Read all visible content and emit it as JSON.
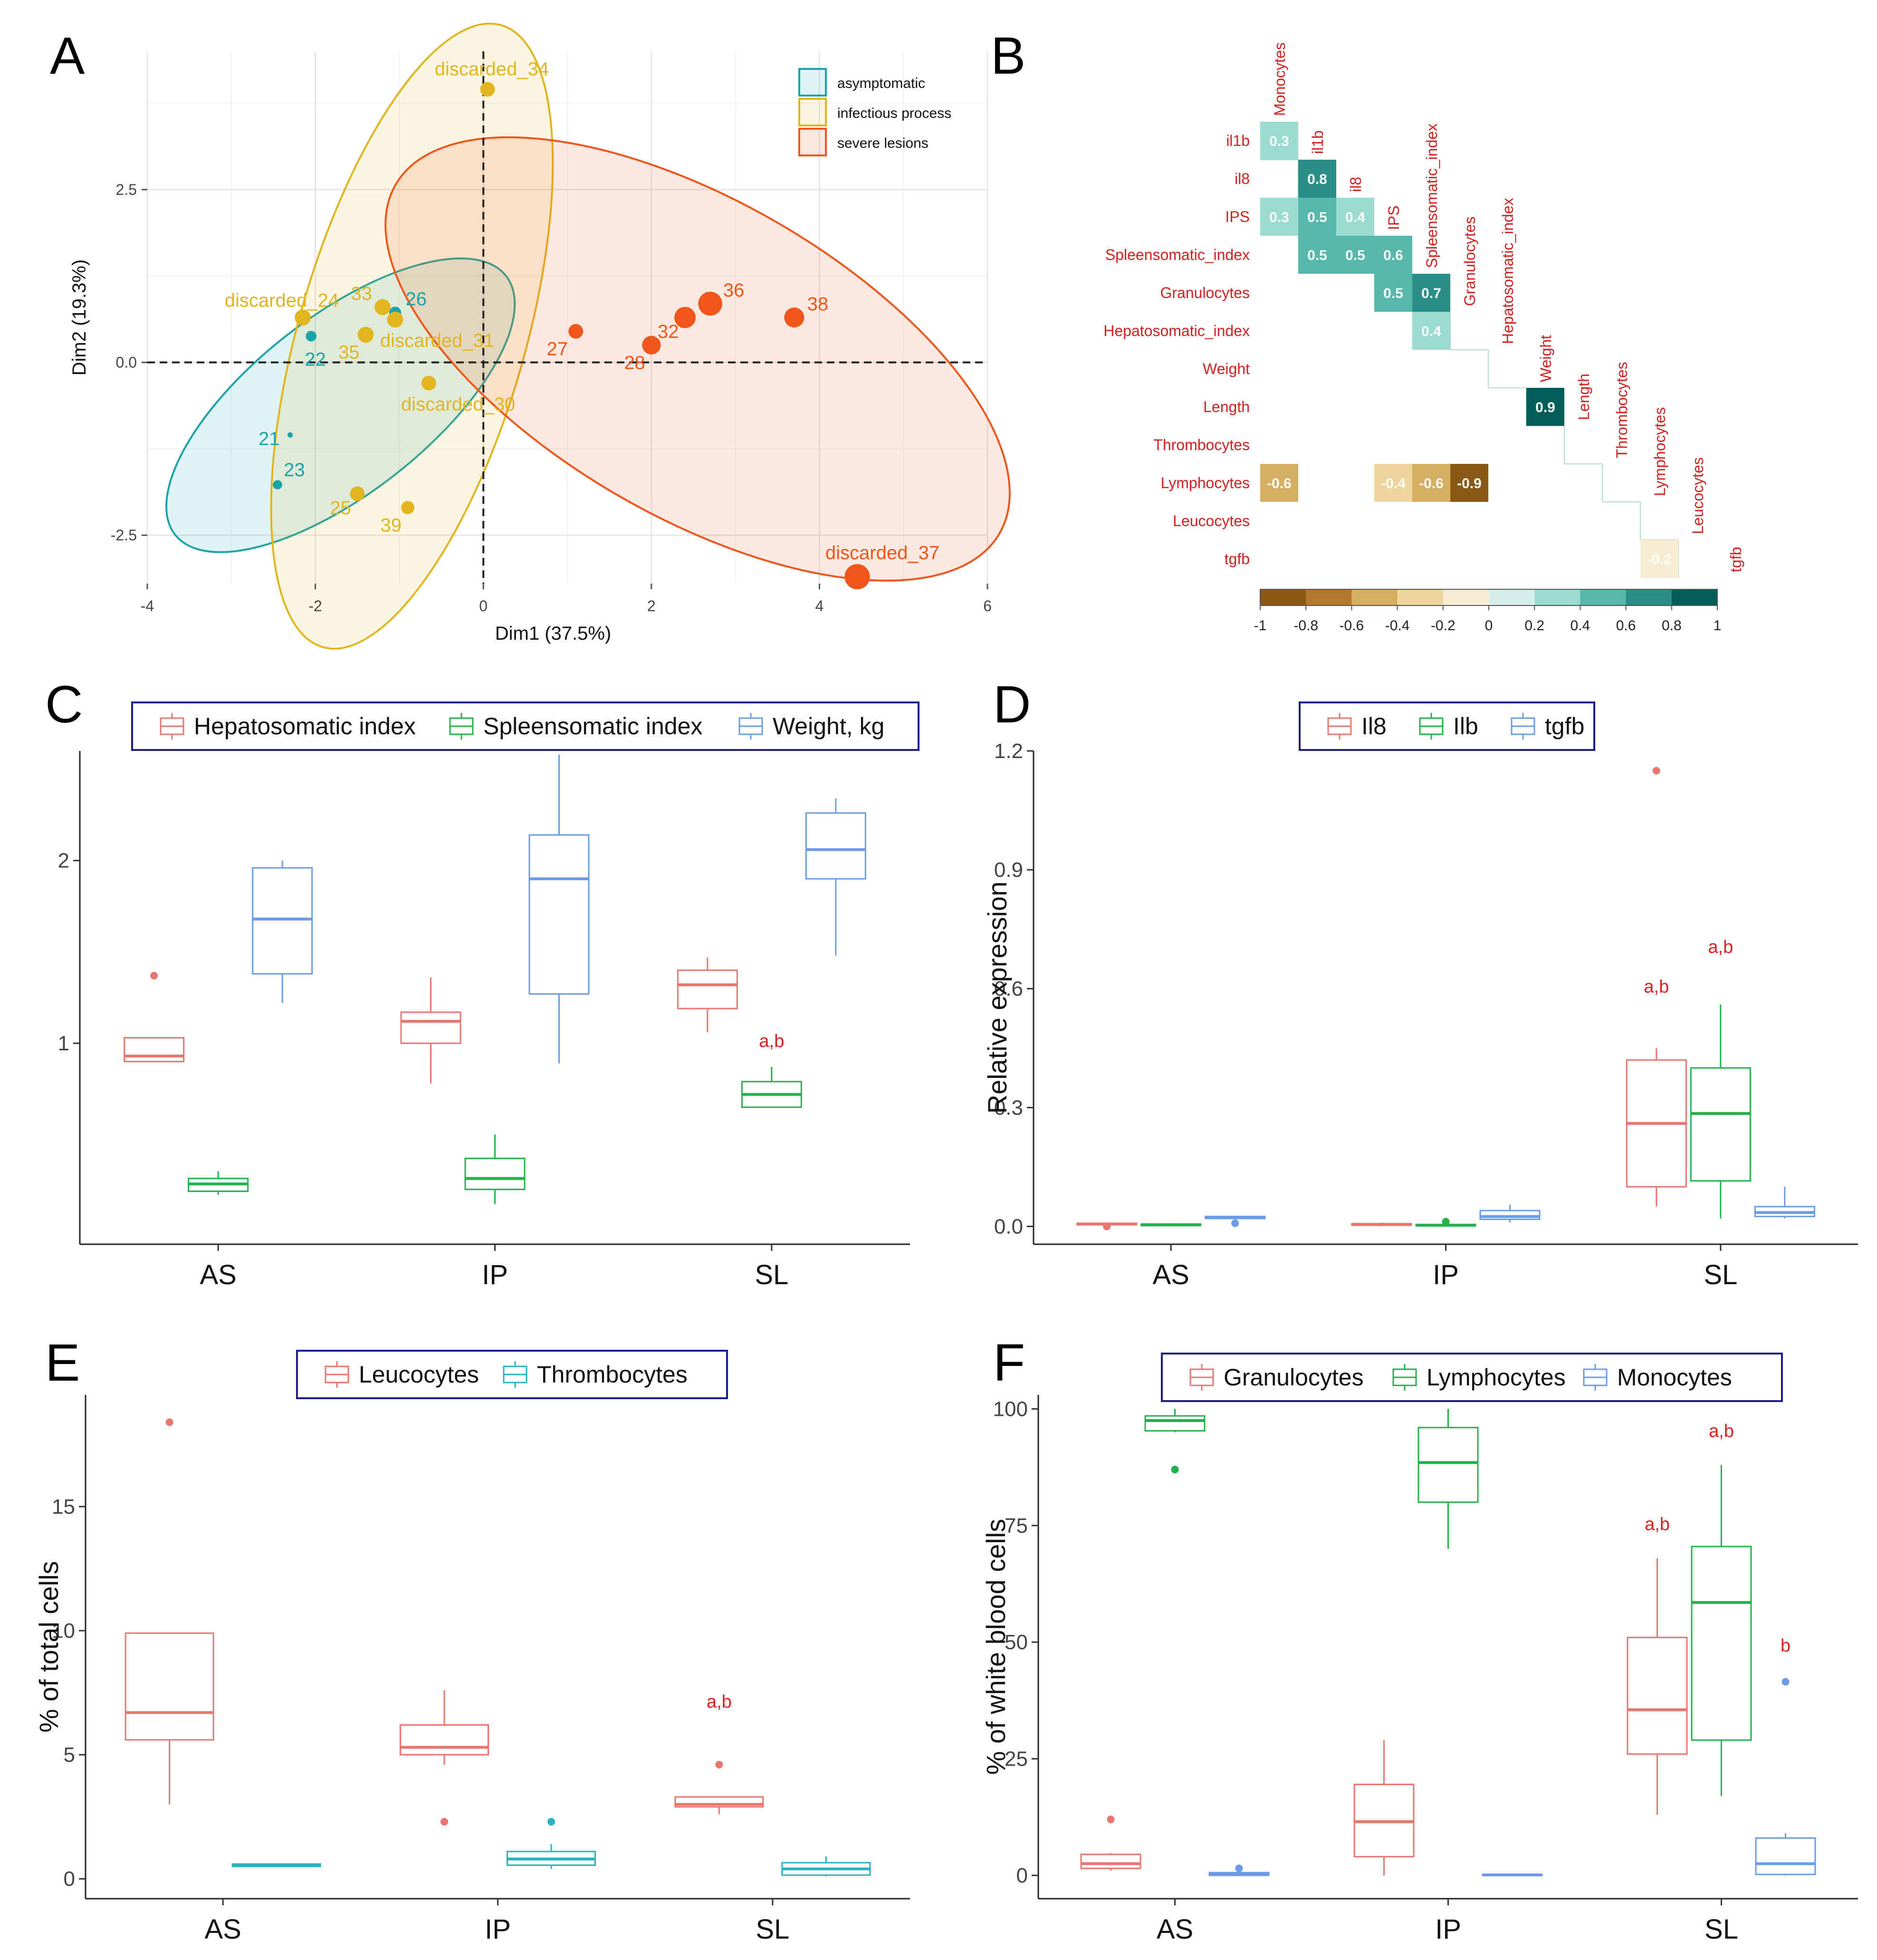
{
  "panel_labels": {
    "a": "A",
    "b": "B",
    "c": "C",
    "d": "D",
    "e": "E",
    "f": "F"
  },
  "colors": {
    "asymptomatic": "#1aa3a8",
    "infectious": "#e0b51e",
    "severe": "#f0561a",
    "red": "#e8766f",
    "green": "#22b24c",
    "blue": "#6b9be8",
    "teal": "#26b5c0",
    "sig": "#e02020",
    "corr_label": "#d42020",
    "legend_border": "#1c1c8c"
  },
  "chart_data": [
    {
      "id": "A",
      "type": "scatter",
      "title": "",
      "xlabel": "Dim1 (37.5%)",
      "ylabel": "Dim2 (19.3%)",
      "xlim": [
        -4,
        6
      ],
      "ylim": [
        -3.2,
        4.5
      ],
      "xticks": [
        -4,
        -2,
        0,
        2,
        4,
        6
      ],
      "xtick_labels": [
        "-4",
        "-2",
        "0",
        "2",
        "4",
        "6"
      ],
      "yticks": [
        -2.5,
        0,
        2.5
      ],
      "ytick_labels": [
        "-2.5",
        "0.0",
        "2.5"
      ],
      "legend": [
        {
          "key": "asymptomatic",
          "label": "asymptomatic"
        },
        {
          "key": "infectious",
          "label": "infectious process"
        },
        {
          "key": "severe",
          "label": "severe lesions"
        }
      ],
      "ellipses": [
        {
          "group": "asymptomatic",
          "cx": -1.7,
          "cy": -0.62,
          "rx": 2.5,
          "ry": 1.05,
          "angle": 38
        },
        {
          "group": "infectious",
          "cx": -0.85,
          "cy": 0.38,
          "rx": 3.85,
          "ry": 1.35,
          "angle": 74
        },
        {
          "group": "severe",
          "cx": 2.55,
          "cy": 0.05,
          "rx": 4.15,
          "ry": 1.88,
          "angle": -30
        }
      ],
      "points": [
        {
          "label": "21",
          "x": -2.3,
          "y": -1.05,
          "group": "asymptomatic",
          "size": 4,
          "lx": -2.55,
          "ly": -1.1
        },
        {
          "label": "22",
          "x": -2.05,
          "y": 0.38,
          "group": "asymptomatic",
          "size": 8,
          "lx": -2.0,
          "ly": 0.05
        },
        {
          "label": "23",
          "x": -2.45,
          "y": -1.77,
          "group": "asymptomatic",
          "size": 7,
          "lx": -2.25,
          "ly": -1.55
        },
        {
          "label": "26",
          "x": -1.05,
          "y": 0.72,
          "group": "asymptomatic",
          "size": 9,
          "lx": -0.8,
          "ly": 0.92
        },
        {
          "label": "discarded_24",
          "x": -2.15,
          "y": 0.65,
          "group": "infectious",
          "size": 12,
          "lx": -2.4,
          "ly": 0.9
        },
        {
          "label": "33",
          "x": -1.2,
          "y": 0.8,
          "group": "infectious",
          "size": 12,
          "lx": -1.45,
          "ly": 1.0
        },
        {
          "label": "35",
          "x": -1.4,
          "y": 0.4,
          "group": "infectious",
          "size": 12,
          "lx": -1.6,
          "ly": 0.15
        },
        {
          "label": "discarded_31",
          "x": -1.05,
          "y": 0.62,
          "group": "infectious",
          "size": 12,
          "lx": -0.55,
          "ly": 0.32
        },
        {
          "label": "discarded_30",
          "x": -0.65,
          "y": -0.3,
          "group": "infectious",
          "size": 11,
          "lx": -0.3,
          "ly": -0.6
        },
        {
          "label": "discarded_34",
          "x": 0.05,
          "y": 3.95,
          "group": "infectious",
          "size": 11,
          "lx": 0.1,
          "ly": 4.25
        },
        {
          "label": "25",
          "x": -1.5,
          "y": -1.9,
          "group": "infectious",
          "size": 11,
          "lx": -1.7,
          "ly": -2.1
        },
        {
          "label": "39",
          "x": -0.9,
          "y": -2.1,
          "group": "infectious",
          "size": 10,
          "lx": -1.1,
          "ly": -2.35
        },
        {
          "label": "27",
          "x": 1.1,
          "y": 0.45,
          "group": "severe",
          "size": 11,
          "lx": 0.88,
          "ly": 0.2
        },
        {
          "label": "28",
          "x": 2.0,
          "y": 0.25,
          "group": "severe",
          "size": 14,
          "lx": 1.8,
          "ly": 0.0
        },
        {
          "label": "32",
          "x": 2.4,
          "y": 0.65,
          "group": "severe",
          "size": 16,
          "lx": 2.2,
          "ly": 0.45
        },
        {
          "label": "36",
          "x": 2.7,
          "y": 0.85,
          "group": "severe",
          "size": 18,
          "lx": 2.98,
          "ly": 1.05
        },
        {
          "label": "38",
          "x": 3.7,
          "y": 0.65,
          "group": "severe",
          "size": 15,
          "lx": 3.98,
          "ly": 0.85
        },
        {
          "label": "discarded_37",
          "x": 4.45,
          "y": -3.1,
          "group": "severe",
          "size": 19,
          "lx": 4.75,
          "ly": -2.75
        }
      ]
    },
    {
      "id": "B",
      "type": "heatmap",
      "title": "",
      "variables": [
        "Monocytes",
        "il1b",
        "il8",
        "IPS",
        "Spleensomatic_index",
        "Granulocytes",
        "Hepatosomatic_index",
        "Weight",
        "Length",
        "Thrombocytes",
        "Lymphocytes",
        "Leucocytes",
        "tgfb"
      ],
      "rows": [
        "il1b",
        "il8",
        "IPS",
        "Spleensomatic_index",
        "Granulocytes",
        "Hepatosomatic_index",
        "Weight",
        "Length",
        "Thrombocytes",
        "Lymphocytes",
        "Leucocytes",
        "tgfb"
      ],
      "cells": [
        {
          "row": 0,
          "col": 0,
          "value": 0.3,
          "label": "0.3"
        },
        {
          "row": 1,
          "col": 1,
          "value": 0.8,
          "label": "0.8"
        },
        {
          "row": 2,
          "col": 0,
          "value": 0.3,
          "label": "0.3"
        },
        {
          "row": 2,
          "col": 1,
          "value": 0.5,
          "label": "0.5"
        },
        {
          "row": 2,
          "col": 2,
          "value": 0.4,
          "label": "0.4"
        },
        {
          "row": 3,
          "col": 1,
          "value": 0.5,
          "label": "0.5"
        },
        {
          "row": 3,
          "col": 2,
          "value": 0.5,
          "label": "0.5"
        },
        {
          "row": 3,
          "col": 3,
          "value": 0.6,
          "label": "0.6"
        },
        {
          "row": 4,
          "col": 3,
          "value": 0.5,
          "label": "0.5"
        },
        {
          "row": 4,
          "col": 4,
          "value": 0.7,
          "label": "0.7"
        },
        {
          "row": 5,
          "col": 4,
          "value": 0.4,
          "label": "0.4"
        },
        {
          "row": 7,
          "col": 7,
          "value": 0.9,
          "label": "0.9"
        },
        {
          "row": 9,
          "col": 0,
          "value": -0.6,
          "label": "-0.6"
        },
        {
          "row": 9,
          "col": 3,
          "value": -0.4,
          "label": "-0.4"
        },
        {
          "row": 9,
          "col": 4,
          "value": -0.6,
          "label": "-0.6"
        },
        {
          "row": 9,
          "col": 5,
          "value": -0.9,
          "label": "-0.9"
        },
        {
          "row": 11,
          "col": 10,
          "value": -0.2,
          "label": "-0.2"
        }
      ],
      "colorbar": {
        "ticks": [
          -1,
          -0.8,
          -0.6,
          -0.4,
          -0.2,
          0,
          0.2,
          0.4,
          0.6,
          0.8,
          1
        ],
        "tick_labels": [
          "-1",
          "-0.8",
          "-0.6",
          "-0.4",
          "-0.2",
          "0",
          "0.2",
          "0.4",
          "0.6",
          "0.8",
          "1"
        ],
        "colors": [
          "#8a5a14",
          "#b5792e",
          "#d6ae62",
          "#edd59b",
          "#f5ecd2",
          "#f4f4f4",
          "#d5efeb",
          "#99dbd1",
          "#55b8a9",
          "#2a9086",
          "#035f57"
        ]
      }
    },
    {
      "id": "C",
      "type": "box",
      "ylabel": "",
      "xlabel": "",
      "ylim": [
        -0.1,
        2.6
      ],
      "yticks": [
        1,
        2
      ],
      "ytick_labels": [
        "1",
        "2"
      ],
      "categories": [
        "AS",
        "IP",
        "SL"
      ],
      "series": [
        {
          "name": "Hepatosomatic index",
          "color_key": "red",
          "boxes": [
            {
              "low": 0.9,
              "q1": 0.9,
              "med": 0.93,
              "q3": 1.03,
              "high": 1.03,
              "outliers": [
                1.37
              ]
            },
            {
              "low": 0.78,
              "q1": 1.0,
              "med": 1.12,
              "q3": 1.17,
              "high": 1.36,
              "outliers": []
            },
            {
              "low": 1.06,
              "q1": 1.19,
              "med": 1.32,
              "q3": 1.4,
              "high": 1.47,
              "outliers": []
            }
          ]
        },
        {
          "name": "Spleensomatic index",
          "color_key": "green",
          "boxes": [
            {
              "low": 0.17,
              "q1": 0.19,
              "med": 0.23,
              "q3": 0.26,
              "high": 0.3,
              "outliers": []
            },
            {
              "low": 0.12,
              "q1": 0.2,
              "med": 0.26,
              "q3": 0.37,
              "high": 0.5,
              "outliers": []
            },
            {
              "low": 0.65,
              "q1": 0.65,
              "med": 0.72,
              "q3": 0.79,
              "high": 0.87,
              "outliers": []
            }
          ]
        },
        {
          "name": "Weight, kg",
          "color_key": "blue",
          "boxes": [
            {
              "low": 1.22,
              "q1": 1.38,
              "med": 1.68,
              "q3": 1.96,
              "high": 2.0,
              "outliers": []
            },
            {
              "low": 0.89,
              "q1": 1.27,
              "med": 1.9,
              "q3": 2.14,
              "high": 2.58,
              "outliers": []
            },
            {
              "low": 1.48,
              "q1": 1.9,
              "med": 2.06,
              "q3": 2.26,
              "high": 2.34,
              "outliers": []
            }
          ]
        }
      ],
      "annotations": [
        {
          "text": "a,b",
          "category": 2,
          "series": 1,
          "y": 0.98
        }
      ]
    },
    {
      "id": "D",
      "type": "box",
      "ylabel": "Relative expression",
      "xlabel": "",
      "ylim": [
        -0.045,
        1.2
      ],
      "yticks": [
        0,
        0.3,
        0.6,
        0.9,
        1.2
      ],
      "ytick_labels": [
        "0.0",
        "0.3",
        "0.6",
        "0.9",
        "1.2"
      ],
      "categories": [
        "AS",
        "IP",
        "SL"
      ],
      "series": [
        {
          "name": "Il8",
          "color_key": "red",
          "boxes": [
            {
              "low": 0.0,
              "q1": 0.004,
              "med": 0.006,
              "q3": 0.008,
              "high": 0.01,
              "outliers": [
                0.0
              ]
            },
            {
              "low": 0.0,
              "q1": 0.003,
              "med": 0.005,
              "q3": 0.007,
              "high": 0.009,
              "outliers": []
            },
            {
              "low": 0.05,
              "q1": 0.1,
              "med": 0.26,
              "q3": 0.42,
              "high": 0.45,
              "outliers": [
                1.15
              ]
            }
          ]
        },
        {
          "name": "Ilb",
          "color_key": "green",
          "boxes": [
            {
              "low": 0.0,
              "q1": 0.002,
              "med": 0.004,
              "q3": 0.006,
              "high": 0.008,
              "outliers": []
            },
            {
              "low": 0.0,
              "q1": 0.002,
              "med": 0.003,
              "q3": 0.005,
              "high": 0.006,
              "outliers": [
                0.012
              ]
            },
            {
              "low": 0.02,
              "q1": 0.115,
              "med": 0.285,
              "q3": 0.4,
              "high": 0.56,
              "outliers": []
            }
          ]
        },
        {
          "name": "tgfb",
          "color_key": "blue",
          "boxes": [
            {
              "low": 0.018,
              "q1": 0.02,
              "med": 0.023,
              "q3": 0.025,
              "high": 0.027,
              "outliers": [
                0.008
              ]
            },
            {
              "low": 0.01,
              "q1": 0.018,
              "med": 0.025,
              "q3": 0.04,
              "high": 0.055,
              "outliers": []
            },
            {
              "low": 0.02,
              "q1": 0.025,
              "med": 0.035,
              "q3": 0.05,
              "high": 0.1,
              "outliers": []
            }
          ]
        }
      ],
      "annotations": [
        {
          "text": "a,b",
          "category": 2,
          "series": 0,
          "y": 0.59
        },
        {
          "text": "a,b",
          "category": 2,
          "series": 1,
          "y": 0.69
        }
      ]
    },
    {
      "id": "E",
      "type": "box",
      "ylabel": "% of total cells",
      "xlabel": "",
      "ylim": [
        -0.8,
        19.5
      ],
      "yticks": [
        0,
        5,
        10,
        15
      ],
      "ytick_labels": [
        "0",
        "5",
        "10",
        "15"
      ],
      "categories": [
        "AS",
        "IP",
        "SL"
      ],
      "series": [
        {
          "name": "Leucocytes",
          "color_key": "red",
          "boxes": [
            {
              "low": 3.0,
              "q1": 5.6,
              "med": 6.7,
              "q3": 9.9,
              "high": 9.9,
              "outliers": [
                18.4
              ]
            },
            {
              "low": 4.6,
              "q1": 5.0,
              "med": 5.3,
              "q3": 6.2,
              "high": 7.6,
              "outliers": [
                2.3
              ]
            },
            {
              "low": 2.6,
              "q1": 2.9,
              "med": 3.0,
              "q3": 3.3,
              "high": 3.3,
              "outliers": [
                4.6
              ]
            }
          ]
        },
        {
          "name": "Thrombocytes",
          "color_key": "teal",
          "boxes": [
            {
              "low": 0.5,
              "q1": 0.5,
              "med": 0.55,
              "q3": 0.6,
              "high": 0.6,
              "outliers": []
            },
            {
              "low": 0.4,
              "q1": 0.55,
              "med": 0.8,
              "q3": 1.1,
              "high": 1.4,
              "outliers": [
                2.3
              ]
            },
            {
              "low": 0.1,
              "q1": 0.15,
              "med": 0.4,
              "q3": 0.65,
              "high": 0.9,
              "outliers": []
            }
          ]
        }
      ],
      "annotations": [
        {
          "text": "a,b",
          "category": 2,
          "series": 0,
          "y": 6.9
        }
      ]
    },
    {
      "id": "F",
      "type": "box",
      "ylabel": "% of white blood cells",
      "xlabel": "",
      "ylim": [
        -5,
        103
      ],
      "yticks": [
        0,
        25,
        50,
        75,
        100
      ],
      "ytick_labels": [
        "0",
        "25",
        "50",
        "75",
        "100"
      ],
      "categories": [
        "AS",
        "IP",
        "SL"
      ],
      "series": [
        {
          "name": "Granulocytes",
          "color_key": "red",
          "boxes": [
            {
              "low": 1.0,
              "q1": 1.5,
              "med": 2.5,
              "q3": 4.5,
              "high": 4.8,
              "outliers": [
                12
              ]
            },
            {
              "low": 0,
              "q1": 4,
              "med": 11.5,
              "q3": 19.5,
              "high": 29,
              "outliers": []
            },
            {
              "low": 13,
              "q1": 26,
              "med": 35.5,
              "q3": 51,
              "high": 68,
              "outliers": []
            }
          ]
        },
        {
          "name": "Lymphocytes",
          "color_key": "green",
          "boxes": [
            {
              "low": 95,
              "q1": 95.3,
              "med": 97.5,
              "q3": 98.5,
              "high": 100,
              "outliers": [
                87
              ]
            },
            {
              "low": 70,
              "q1": 80,
              "med": 88.5,
              "q3": 96,
              "high": 100,
              "outliers": []
            },
            {
              "low": 17,
              "q1": 29,
              "med": 58.5,
              "q3": 70.5,
              "high": 88,
              "outliers": []
            }
          ]
        },
        {
          "name": "Monocytes",
          "color_key": "blue",
          "boxes": [
            {
              "low": 0,
              "q1": 0,
              "med": 0.3,
              "q3": 0.6,
              "high": 0.6,
              "outliers": [
                1.5
              ]
            },
            {
              "low": 0,
              "q1": 0,
              "med": 0.1,
              "q3": 0.2,
              "high": 0.2,
              "outliers": []
            },
            {
              "low": 0,
              "q1": 0.2,
              "med": 2.5,
              "q3": 8,
              "high": 9,
              "outliers": [
                41.5
              ]
            }
          ]
        }
      ],
      "annotations": [
        {
          "text": "a,b",
          "category": 2,
          "series": 0,
          "y": 74
        },
        {
          "text": "a,b",
          "category": 2,
          "series": 1,
          "y": 94
        },
        {
          "text": "b",
          "category": 2,
          "series": 2,
          "y": 48
        }
      ]
    }
  ]
}
